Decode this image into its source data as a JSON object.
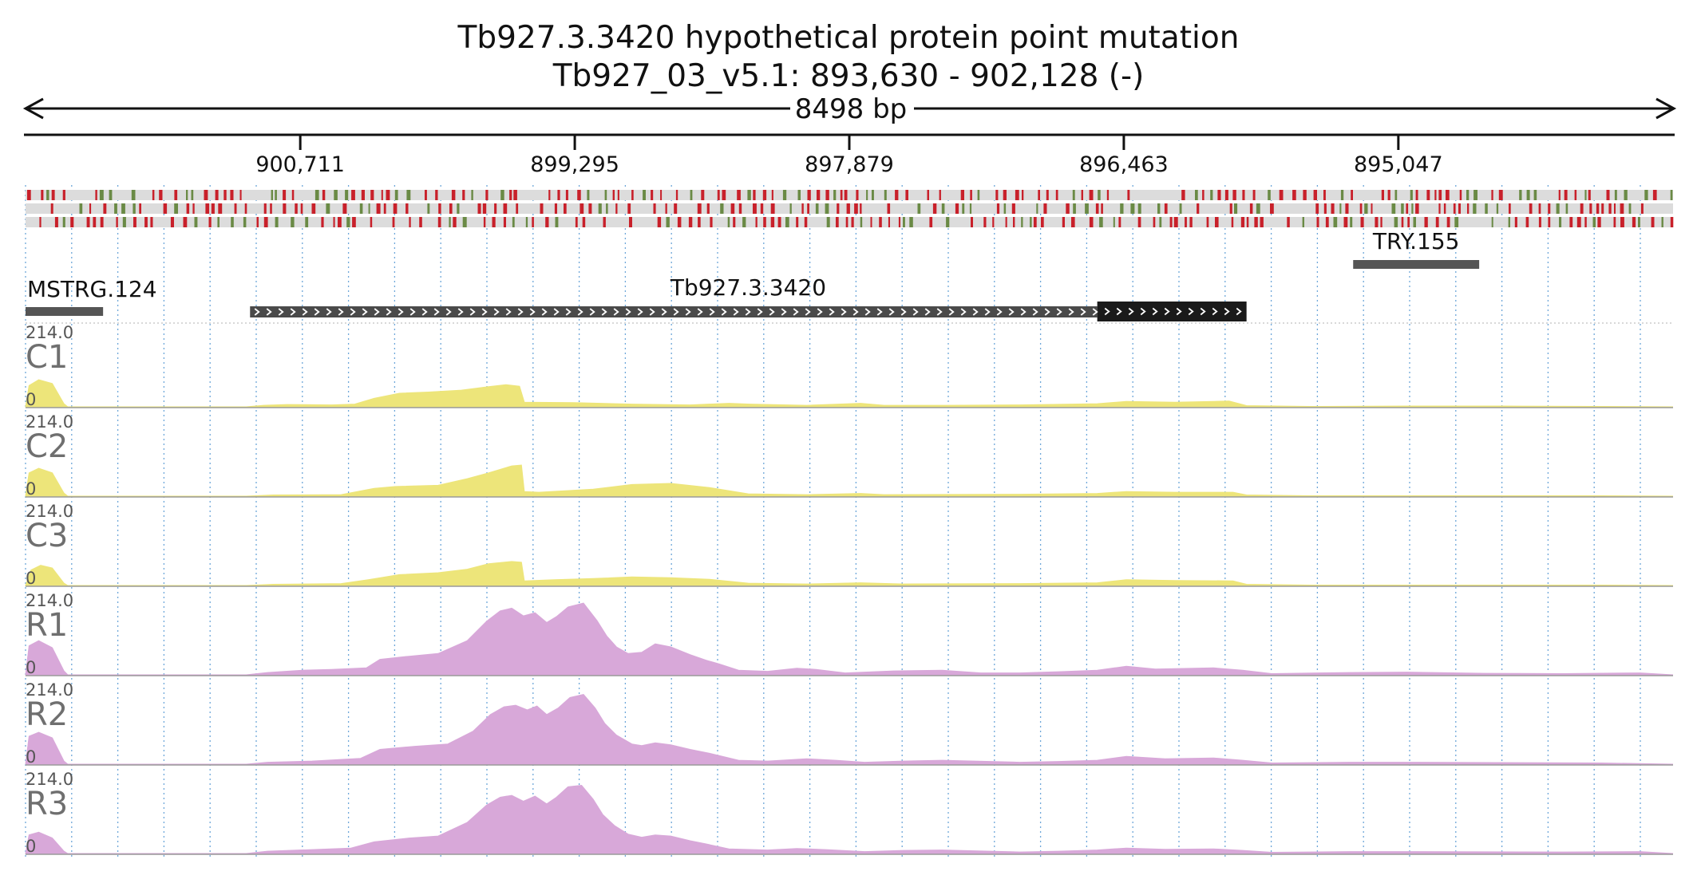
{
  "header": {
    "title_line1": "Tb927.3.3420  hypothetical protein  point mutation",
    "title_line2": "Tb927_03_v5.1: 893,630 - 902,128 (-)",
    "span_label": "8498 bp"
  },
  "colors": {
    "control_fill": "#ede57a",
    "rnai_fill": "#d8a8d9",
    "mutation_red": "#c8202a",
    "mutation_green": "#6a8a45",
    "feature_gray": "#555555",
    "cds_black": "#1a1a1a",
    "grid_blue": "#6ea7d9"
  },
  "chart_data": {
    "type": "area",
    "region": {
      "chrom": "Tb927_03_v5.1",
      "start": 893630,
      "end": 902128,
      "strand": "-"
    },
    "x_ticks": [
      "900,711",
      "899,295",
      "897,879",
      "896,463",
      "895,047"
    ],
    "features": [
      {
        "name": "MSTRG.124",
        "start": 901728,
        "end": 902128,
        "type": "transcript"
      },
      {
        "name": "Tb927.3.3420",
        "start": 895830,
        "end": 900970,
        "cds_start": 895830,
        "cds_end": 896600,
        "type": "gene"
      },
      {
        "name": "TRY.155",
        "start": 894630,
        "end": 895280,
        "type": "feature"
      }
    ],
    "tracks": [
      {
        "name": "C1",
        "max_label": "214.0",
        "min_label": "0",
        "ylim": [
          0,
          214
        ],
        "group": "control",
        "values": [
          [
            902128,
            0
          ],
          [
            902110,
            55
          ],
          [
            902060,
            70
          ],
          [
            901990,
            60
          ],
          [
            901930,
            8
          ],
          [
            901910,
            0
          ],
          [
            900990,
            0
          ],
          [
            900900,
            4
          ],
          [
            900780,
            6
          ],
          [
            900550,
            5
          ],
          [
            900430,
            7
          ],
          [
            900330,
            22
          ],
          [
            900200,
            35
          ],
          [
            900050,
            38
          ],
          [
            899880,
            43
          ],
          [
            899740,
            52
          ],
          [
            899650,
            57
          ],
          [
            899580,
            53
          ],
          [
            899555,
            12
          ],
          [
            899300,
            11
          ],
          [
            899000,
            7
          ],
          [
            898700,
            5
          ],
          [
            898500,
            9
          ],
          [
            898390,
            7
          ],
          [
            898100,
            4
          ],
          [
            897820,
            9
          ],
          [
            897700,
            4
          ],
          [
            897380,
            4
          ],
          [
            897000,
            5
          ],
          [
            896600,
            8
          ],
          [
            896450,
            14
          ],
          [
            896200,
            12
          ],
          [
            896000,
            14
          ],
          [
            895920,
            15
          ],
          [
            895830,
            3
          ],
          [
            895500,
            1
          ],
          [
            895000,
            2
          ],
          [
            894500,
            2
          ],
          [
            894000,
            1
          ],
          [
            893630,
            0
          ]
        ]
      },
      {
        "name": "C2",
        "max_label": "214.0",
        "min_label": "0",
        "ylim": [
          0,
          214
        ],
        "group": "control",
        "values": [
          [
            902128,
            0
          ],
          [
            902110,
            60
          ],
          [
            902060,
            72
          ],
          [
            901990,
            60
          ],
          [
            901930,
            8
          ],
          [
            901910,
            0
          ],
          [
            900990,
            0
          ],
          [
            900850,
            3
          ],
          [
            900500,
            4
          ],
          [
            900330,
            20
          ],
          [
            900220,
            25
          ],
          [
            900000,
            28
          ],
          [
            899850,
            45
          ],
          [
            899740,
            60
          ],
          [
            899620,
            78
          ],
          [
            899570,
            80
          ],
          [
            899555,
            12
          ],
          [
            899480,
            10
          ],
          [
            899200,
            18
          ],
          [
            899000,
            30
          ],
          [
            898800,
            33
          ],
          [
            898600,
            22
          ],
          [
            898400,
            6
          ],
          [
            898100,
            4
          ],
          [
            897820,
            7
          ],
          [
            897700,
            4
          ],
          [
            897000,
            5
          ],
          [
            896600,
            7
          ],
          [
            896450,
            12
          ],
          [
            896200,
            10
          ],
          [
            895900,
            10
          ],
          [
            895830,
            3
          ],
          [
            895500,
            1
          ],
          [
            894000,
            1
          ],
          [
            893630,
            0
          ]
        ]
      },
      {
        "name": "C3",
        "max_label": "214.0",
        "min_label": "0",
        "ylim": [
          0,
          214
        ],
        "group": "control",
        "values": [
          [
            902128,
            0
          ],
          [
            902100,
            40
          ],
          [
            902050,
            52
          ],
          [
            901990,
            45
          ],
          [
            901930,
            6
          ],
          [
            901910,
            0
          ],
          [
            900990,
            0
          ],
          [
            900850,
            3
          ],
          [
            900500,
            5
          ],
          [
            900360,
            15
          ],
          [
            900200,
            28
          ],
          [
            900000,
            33
          ],
          [
            899850,
            42
          ],
          [
            899740,
            56
          ],
          [
            899620,
            62
          ],
          [
            899570,
            60
          ],
          [
            899555,
            12
          ],
          [
            899400,
            15
          ],
          [
            899200,
            18
          ],
          [
            899000,
            22
          ],
          [
            898800,
            20
          ],
          [
            898600,
            16
          ],
          [
            898400,
            6
          ],
          [
            898100,
            4
          ],
          [
            897820,
            7
          ],
          [
            897600,
            4
          ],
          [
            897000,
            5
          ],
          [
            896600,
            7
          ],
          [
            896450,
            15
          ],
          [
            896200,
            13
          ],
          [
            895900,
            12
          ],
          [
            895830,
            3
          ],
          [
            895500,
            1
          ],
          [
            894000,
            1
          ],
          [
            893630,
            0
          ]
        ]
      },
      {
        "name": "R1",
        "max_label": "214.0",
        "min_label": "0",
        "ylim": [
          0,
          214
        ],
        "group": "rnai",
        "values": [
          [
            902128,
            0
          ],
          [
            902110,
            75
          ],
          [
            902060,
            88
          ],
          [
            901990,
            70
          ],
          [
            901930,
            10
          ],
          [
            901910,
            0
          ],
          [
            900990,
            0
          ],
          [
            900880,
            6
          ],
          [
            900700,
            12
          ],
          [
            900550,
            14
          ],
          [
            900370,
            18
          ],
          [
            900300,
            40
          ],
          [
            900150,
            48
          ],
          [
            900000,
            55
          ],
          [
            899850,
            88
          ],
          [
            899750,
            138
          ],
          [
            899680,
            165
          ],
          [
            899620,
            172
          ],
          [
            899560,
            152
          ],
          [
            899500,
            160
          ],
          [
            899440,
            135
          ],
          [
            899390,
            150
          ],
          [
            899330,
            175
          ],
          [
            899250,
            185
          ],
          [
            899180,
            140
          ],
          [
            899130,
            100
          ],
          [
            899080,
            72
          ],
          [
            899020,
            55
          ],
          [
            898950,
            58
          ],
          [
            898880,
            80
          ],
          [
            898800,
            72
          ],
          [
            898700,
            52
          ],
          [
            898620,
            38
          ],
          [
            898550,
            28
          ],
          [
            898450,
            12
          ],
          [
            898300,
            9
          ],
          [
            898150,
            17
          ],
          [
            898050,
            14
          ],
          [
            897900,
            5
          ],
          [
            897650,
            10
          ],
          [
            897400,
            12
          ],
          [
            897200,
            5
          ],
          [
            897000,
            5
          ],
          [
            896800,
            8
          ],
          [
            896600,
            12
          ],
          [
            896450,
            22
          ],
          [
            896300,
            15
          ],
          [
            896000,
            18
          ],
          [
            895850,
            12
          ],
          [
            895700,
            3
          ],
          [
            895300,
            6
          ],
          [
            895000,
            7
          ],
          [
            894600,
            4
          ],
          [
            894200,
            3
          ],
          [
            893800,
            5
          ],
          [
            893630,
            0
          ]
        ]
      },
      {
        "name": "R2",
        "max_label": "214.0",
        "min_label": "0",
        "ylim": [
          0,
          214
        ],
        "group": "rnai",
        "values": [
          [
            902128,
            0
          ],
          [
            902110,
            72
          ],
          [
            902060,
            82
          ],
          [
            901990,
            68
          ],
          [
            901930,
            8
          ],
          [
            901910,
            0
          ],
          [
            900990,
            0
          ],
          [
            900880,
            5
          ],
          [
            900650,
            8
          ],
          [
            900400,
            15
          ],
          [
            900300,
            38
          ],
          [
            900120,
            46
          ],
          [
            899950,
            52
          ],
          [
            899820,
            85
          ],
          [
            899730,
            128
          ],
          [
            899660,
            148
          ],
          [
            899600,
            152
          ],
          [
            899540,
            140
          ],
          [
            899490,
            150
          ],
          [
            899440,
            128
          ],
          [
            899380,
            145
          ],
          [
            899320,
            172
          ],
          [
            899250,
            180
          ],
          [
            899190,
            145
          ],
          [
            899140,
            105
          ],
          [
            899080,
            75
          ],
          [
            899000,
            52
          ],
          [
            898950,
            48
          ],
          [
            898880,
            55
          ],
          [
            898800,
            50
          ],
          [
            898700,
            38
          ],
          [
            898600,
            28
          ],
          [
            898450,
            10
          ],
          [
            898300,
            8
          ],
          [
            898100,
            14
          ],
          [
            897950,
            10
          ],
          [
            897800,
            5
          ],
          [
            897600,
            8
          ],
          [
            897400,
            10
          ],
          [
            897000,
            5
          ],
          [
            896800,
            7
          ],
          [
            896600,
            10
          ],
          [
            896450,
            20
          ],
          [
            896250,
            14
          ],
          [
            896000,
            16
          ],
          [
            895850,
            10
          ],
          [
            895700,
            3
          ],
          [
            895300,
            5
          ],
          [
            895000,
            5
          ],
          [
            894000,
            3
          ],
          [
            893630,
            0
          ]
        ]
      },
      {
        "name": "R3",
        "max_label": "214.0",
        "min_label": "0",
        "ylim": [
          0,
          214
        ],
        "group": "rnai",
        "values": [
          [
            902128,
            0
          ],
          [
            902110,
            48
          ],
          [
            902060,
            55
          ],
          [
            901990,
            40
          ],
          [
            901930,
            6
          ],
          [
            901910,
            0
          ],
          [
            900990,
            0
          ],
          [
            900880,
            6
          ],
          [
            900650,
            10
          ],
          [
            900450,
            14
          ],
          [
            900330,
            30
          ],
          [
            900150,
            40
          ],
          [
            900000,
            45
          ],
          [
            899850,
            80
          ],
          [
            899750,
            125
          ],
          [
            899680,
            145
          ],
          [
            899620,
            150
          ],
          [
            899560,
            135
          ],
          [
            899500,
            148
          ],
          [
            899440,
            128
          ],
          [
            899390,
            145
          ],
          [
            899330,
            172
          ],
          [
            899260,
            176
          ],
          [
            899200,
            140
          ],
          [
            899150,
            100
          ],
          [
            899090,
            72
          ],
          [
            899020,
            50
          ],
          [
            898950,
            42
          ],
          [
            898880,
            48
          ],
          [
            898800,
            45
          ],
          [
            898700,
            33
          ],
          [
            898620,
            25
          ],
          [
            898500,
            12
          ],
          [
            898300,
            9
          ],
          [
            898150,
            13
          ],
          [
            898000,
            10
          ],
          [
            897800,
            5
          ],
          [
            897600,
            8
          ],
          [
            897400,
            9
          ],
          [
            897000,
            4
          ],
          [
            896800,
            6
          ],
          [
            896600,
            9
          ],
          [
            896450,
            14
          ],
          [
            896250,
            11
          ],
          [
            896000,
            12
          ],
          [
            895850,
            8
          ],
          [
            895700,
            3
          ],
          [
            895300,
            5
          ],
          [
            895000,
            5
          ],
          [
            894200,
            4
          ],
          [
            893800,
            5
          ],
          [
            893630,
            0
          ]
        ]
      }
    ]
  }
}
